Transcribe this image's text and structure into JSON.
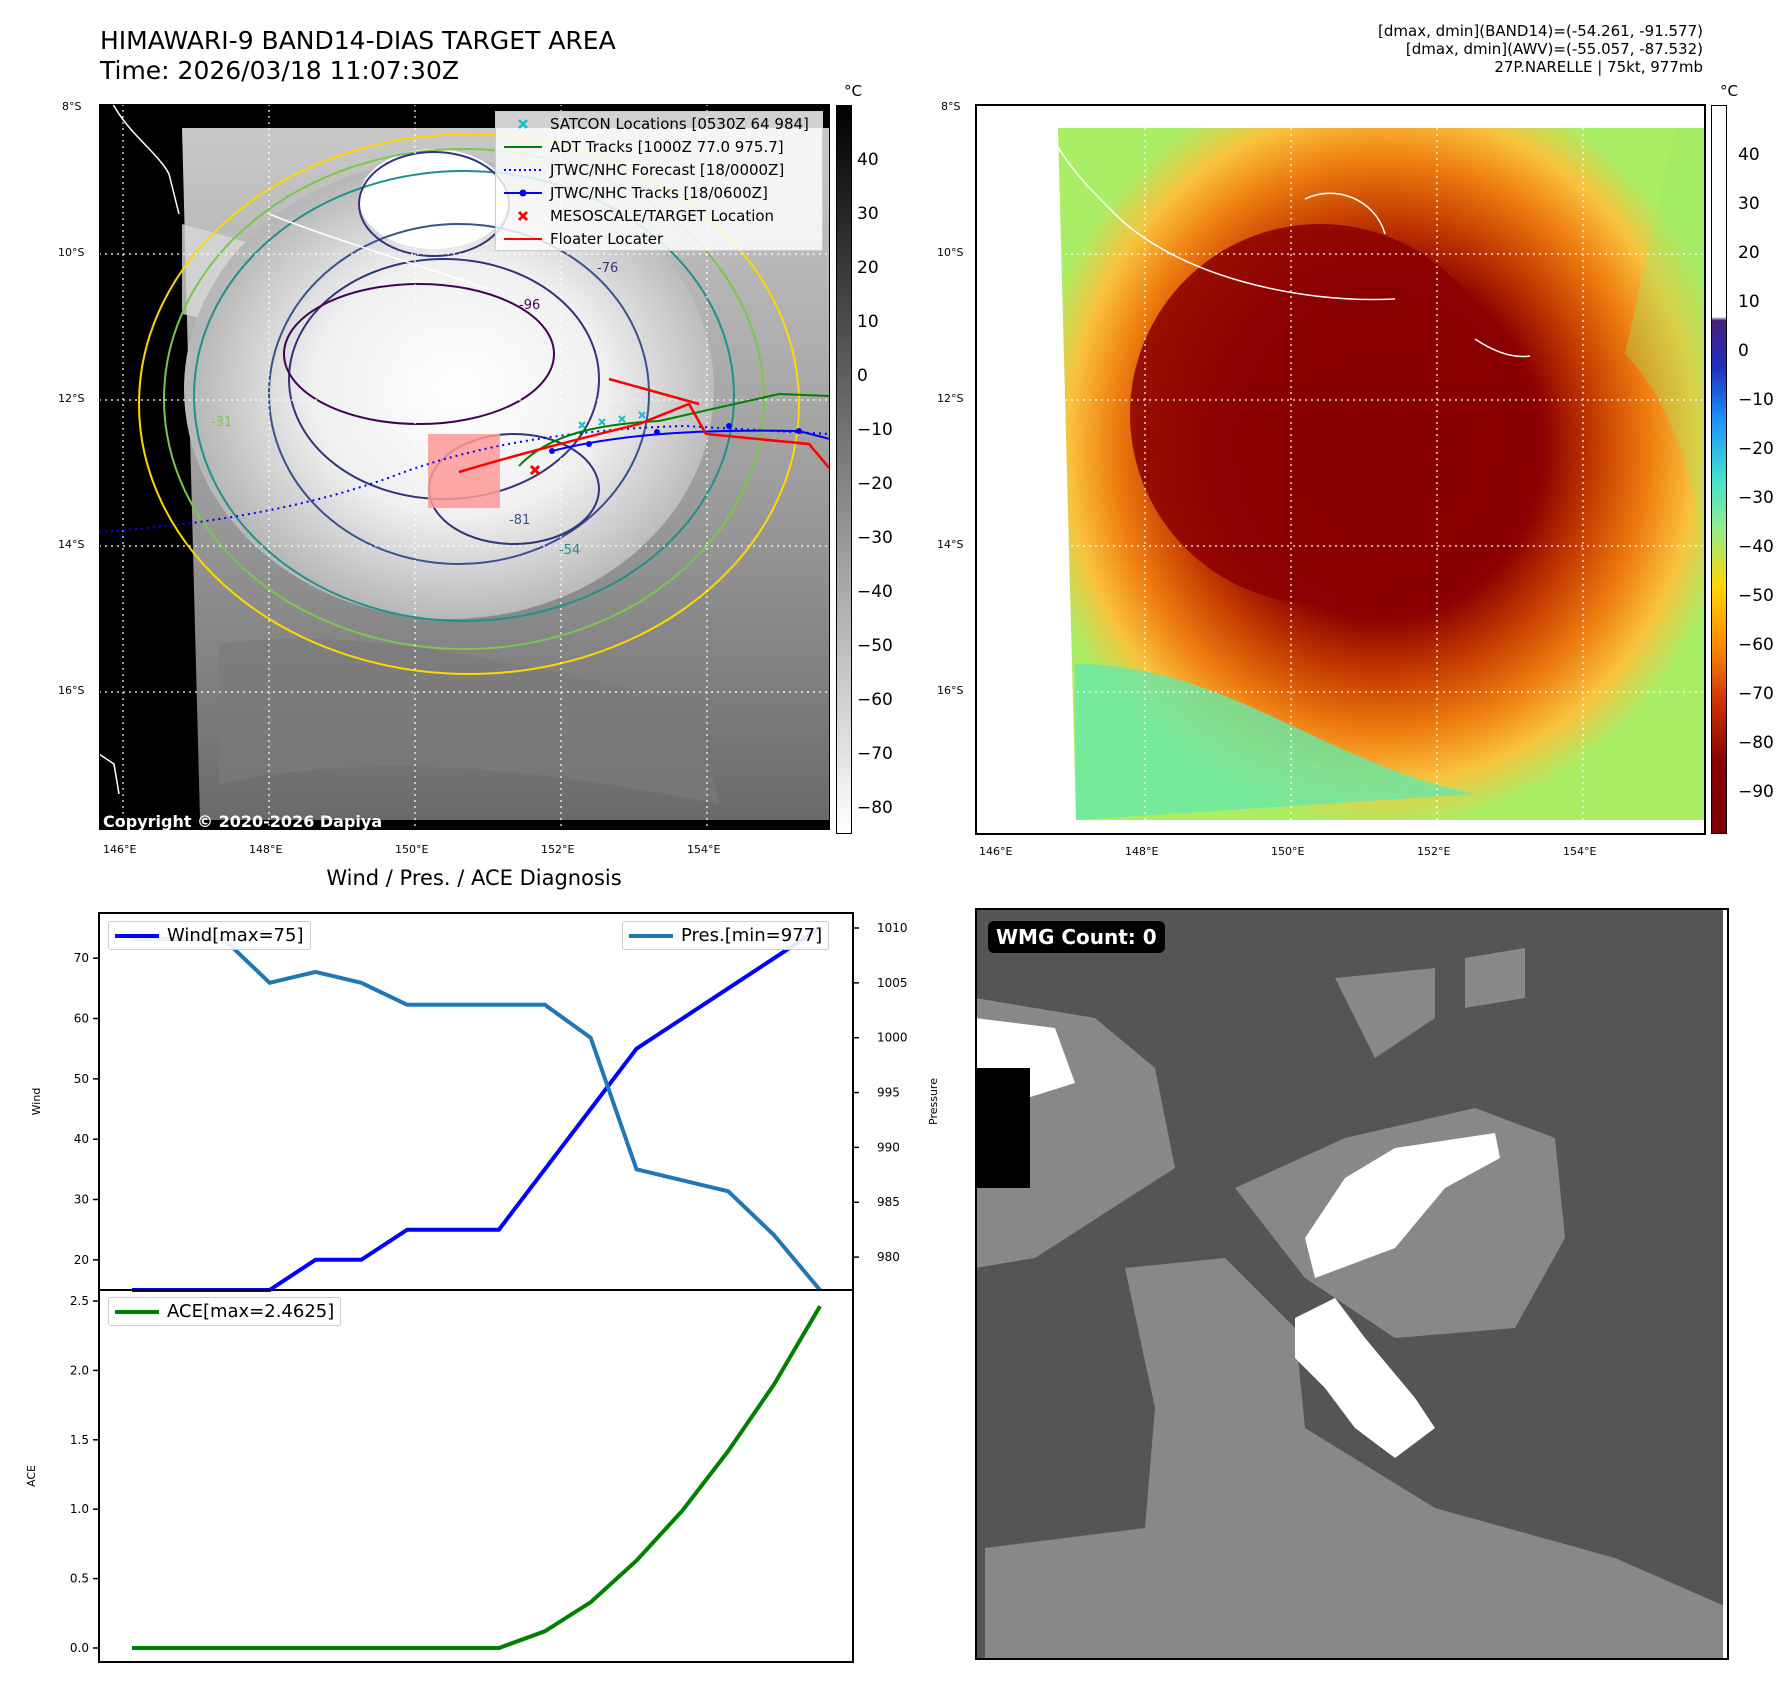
{
  "header": {
    "title_line1": "HIMAWARI-9 BAND14-DIAS TARGET AREA",
    "title_line2": "Time: 2026/03/18 11:07:30Z",
    "info_line1": "[dmax, dmin](BAND14)=(-54.261, -91.577)",
    "info_line2": "[dmax, dmin](AWV)=(-55.057, -87.532)",
    "info_line3": "27P.NARELLE | 75kt, 977mb"
  },
  "map_axes": {
    "lat_labels": [
      "8°S",
      "10°S",
      "12°S",
      "14°S",
      "16°S"
    ],
    "lon_labels": [
      "146°E",
      "148°E",
      "150°E",
      "152°E",
      "154°E"
    ]
  },
  "map_legend": [
    {
      "label": "SATCON Locations [0530Z 64 984]",
      "color": "#17becf",
      "symbol": "x"
    },
    {
      "label": "ADT Tracks [1000Z 77.0 975.7]",
      "color": "#008000",
      "symbol": "line"
    },
    {
      "label": "JTWC/NHC Forecast [18/0000Z]",
      "color": "#0000ff",
      "symbol": "dotted"
    },
    {
      "label": "JTWC/NHC Tracks [18/0600Z]",
      "color": "#0000ff",
      "symbol": "line-dot"
    },
    {
      "label": "MESOSCALE/TARGET Location",
      "color": "#ff0000",
      "symbol": "x"
    },
    {
      "label": "Floater Locater",
      "color": "#ff0000",
      "symbol": "line"
    }
  ],
  "contour_labels": [
    "-31",
    "-54",
    "-81",
    "-76",
    "-96"
  ],
  "copyright": "Copyright © 2020-2026 Dapiya",
  "colorbar_left": {
    "unit": "°C",
    "ticks": [
      "40",
      "30",
      "20",
      "10",
      "0",
      "−10",
      "−20",
      "−30",
      "−40",
      "−50",
      "−60",
      "−70",
      "−80"
    ]
  },
  "colorbar_right": {
    "unit": "°C",
    "ticks": [
      "40",
      "30",
      "20",
      "10",
      "0",
      "−10",
      "−20",
      "−30",
      "−40",
      "−50",
      "−60",
      "−70",
      "−80",
      "−90"
    ]
  },
  "diag_title": "Wind / Pres. / ACE Diagnosis",
  "wmg_label": "WMG Count: 0",
  "colors": {
    "wind": "#0000ff",
    "pressure": "#1f77b4",
    "ace": "#008000",
    "floater": "#ff0000"
  },
  "chart_data": [
    {
      "type": "line",
      "title": "Wind / Pres. / ACE Diagnosis",
      "ylabel": "Wind",
      "y2label": "Pressure",
      "ylim": [
        15,
        75
      ],
      "y2lim": [
        977,
        1010
      ],
      "yticks": [
        "20",
        "30",
        "40",
        "50",
        "60",
        "70"
      ],
      "y2ticks": [
        "980",
        "985",
        "990",
        "995",
        "1000",
        "1005",
        "1010"
      ],
      "series": [
        {
          "name": "Wind[max=75]",
          "axis": "left",
          "values": [
            15,
            15,
            15,
            15,
            20,
            20,
            25,
            25,
            25,
            35,
            45,
            55,
            60,
            65,
            70,
            75
          ]
        },
        {
          "name": "Pres.[min=977]",
          "axis": "right",
          "values": [
            1009,
            1009,
            1009,
            1005,
            1006,
            1005,
            1003,
            1003,
            1003,
            1003,
            1000,
            988,
            987,
            986,
            982,
            977
          ]
        }
      ]
    },
    {
      "type": "line",
      "ylabel": "ACE",
      "ylim": [
        0,
        2.5
      ],
      "yticks": [
        "0.0",
        "0.5",
        "1.0",
        "1.5",
        "2.0",
        "2.5"
      ],
      "series": [
        {
          "name": "ACE[max=2.4625]",
          "values": [
            0,
            0,
            0,
            0,
            0,
            0,
            0,
            0,
            0,
            0.12,
            0.33,
            0.63,
            0.99,
            1.42,
            1.9,
            2.4625
          ]
        }
      ]
    }
  ]
}
